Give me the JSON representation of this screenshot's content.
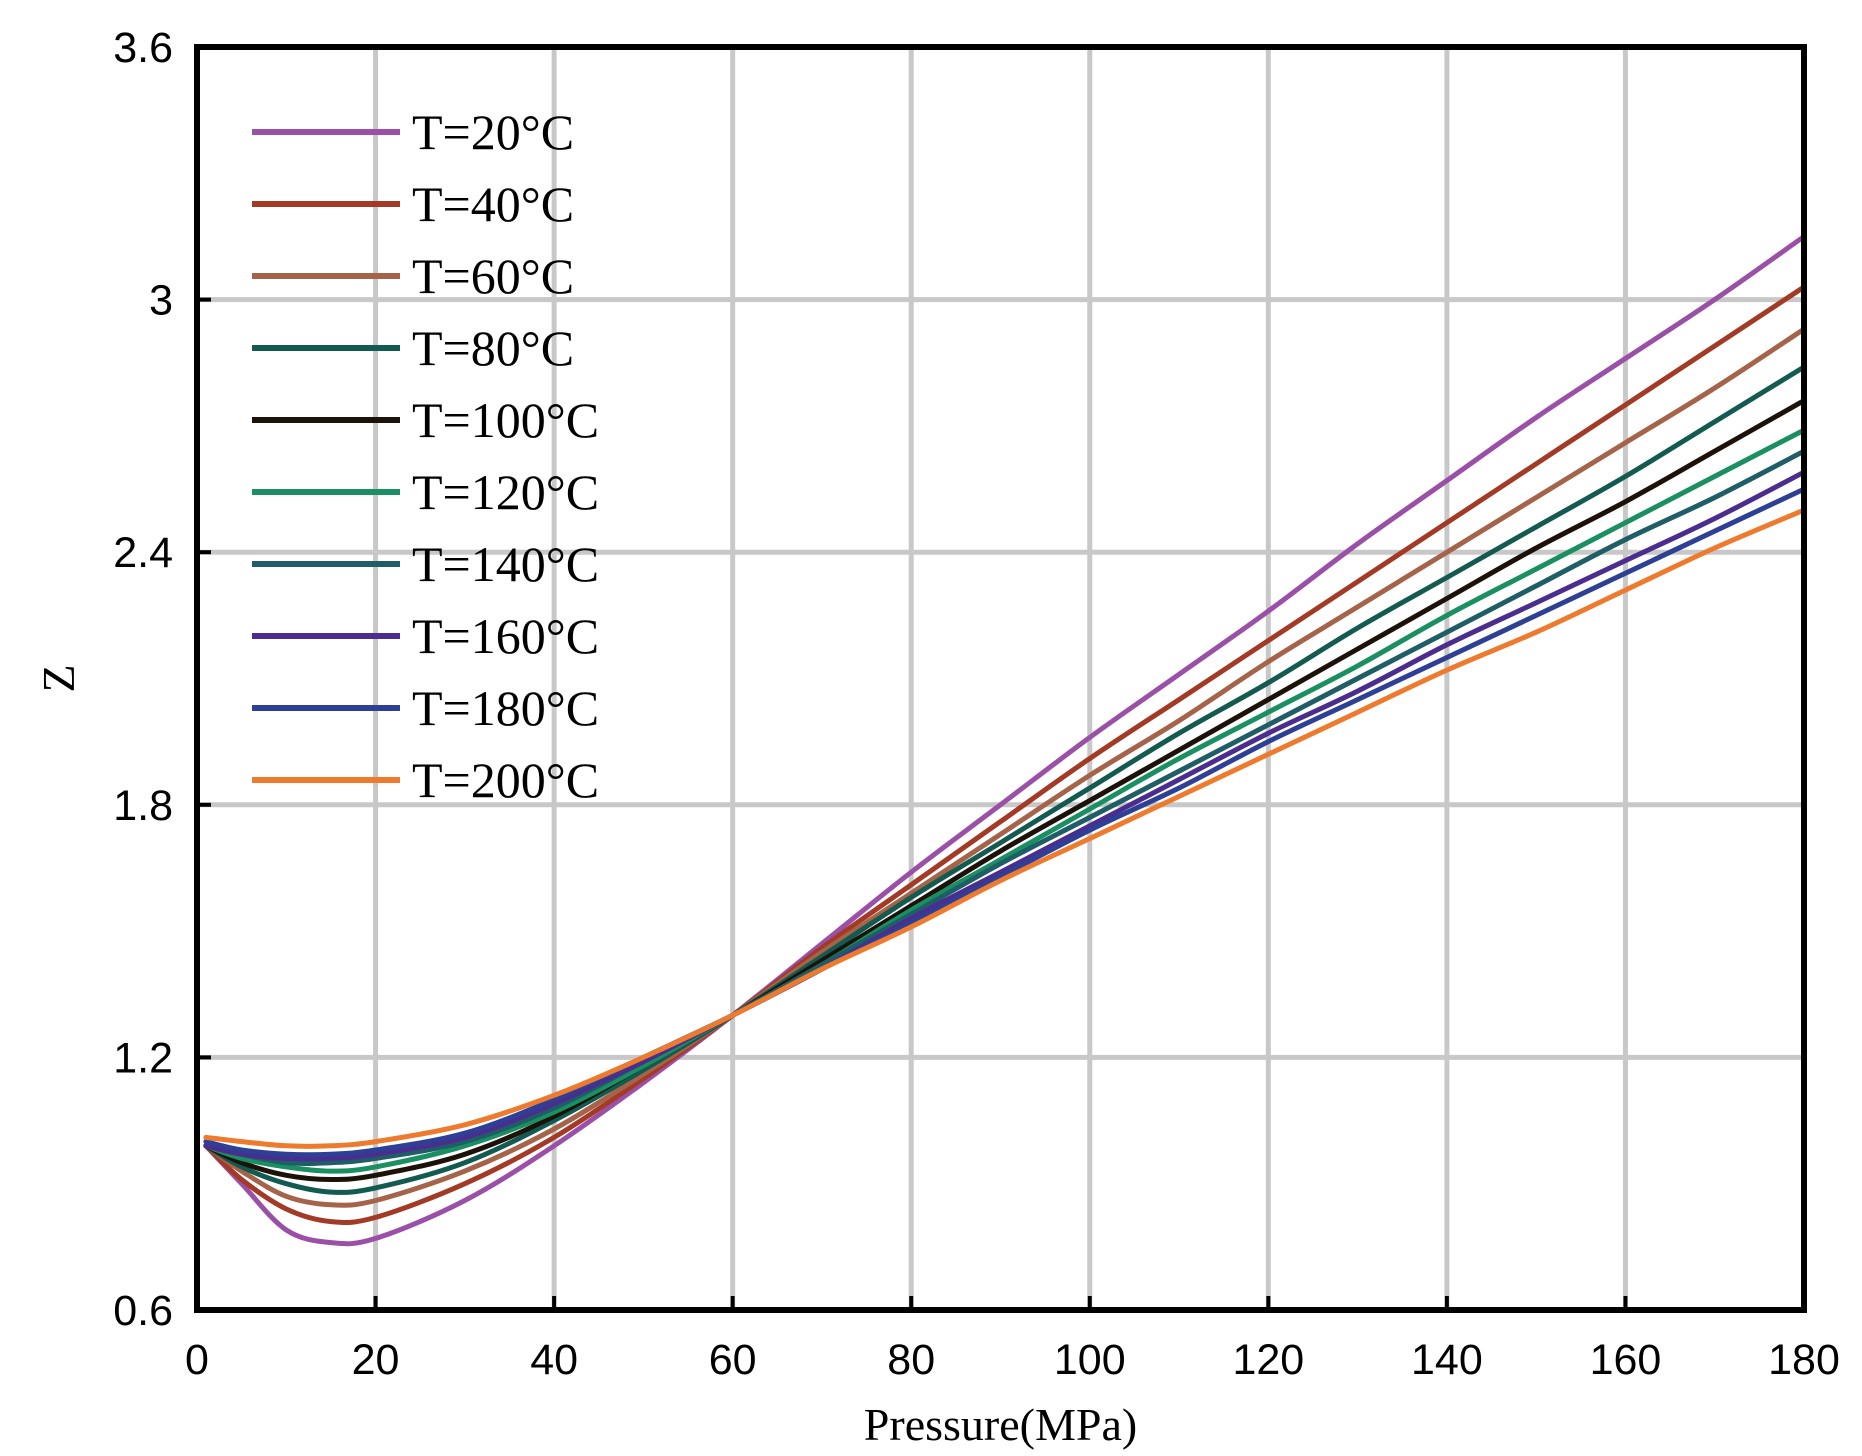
{
  "chart_data": {
    "type": "line",
    "title": "",
    "xlabel": "Pressure(MPa)",
    "ylabel": "Z",
    "xlim": [
      0,
      180
    ],
    "ylim": [
      0.6,
      3.6
    ],
    "xticks": [
      0,
      20,
      40,
      60,
      80,
      100,
      120,
      140,
      160,
      180
    ],
    "xtick_labels": [
      "0",
      "20",
      "40",
      "60",
      "80",
      "100",
      "120",
      "140",
      "160",
      "180"
    ],
    "yticks": [
      0.6,
      1.2,
      1.8,
      2.4,
      3.0,
      3.6
    ],
    "ytick_labels": [
      "0.6",
      "1.2",
      "1.8",
      "2.4",
      "3",
      "3.6"
    ],
    "grid": true,
    "legend_position": "top-left",
    "x": [
      1,
      5,
      10,
      15,
      20,
      30,
      40,
      50,
      60,
      70,
      80,
      90,
      100,
      110,
      120,
      130,
      140,
      150,
      160,
      170,
      180
    ],
    "series": [
      {
        "name": "T=20°C",
        "color": "#9b50a8",
        "values": [
          0.99,
          0.9,
          0.79,
          0.76,
          0.77,
          0.86,
          0.99,
          1.14,
          1.3,
          1.47,
          1.64,
          1.8,
          1.96,
          2.11,
          2.26,
          2.42,
          2.57,
          2.72,
          2.86,
          3.0,
          3.15
        ]
      },
      {
        "name": "T=40°C",
        "color": "#a33a26",
        "values": [
          0.99,
          0.91,
          0.84,
          0.81,
          0.82,
          0.9,
          1.01,
          1.15,
          1.3,
          1.46,
          1.61,
          1.76,
          1.91,
          2.05,
          2.19,
          2.33,
          2.47,
          2.61,
          2.75,
          2.89,
          3.03
        ]
      },
      {
        "name": "T=60°C",
        "color": "#a5644a",
        "values": [
          0.99,
          0.93,
          0.87,
          0.85,
          0.86,
          0.93,
          1.03,
          1.16,
          1.3,
          1.45,
          1.59,
          1.73,
          1.87,
          2.0,
          2.14,
          2.27,
          2.4,
          2.53,
          2.66,
          2.79,
          2.93
        ]
      },
      {
        "name": "T=80°C",
        "color": "#135a50",
        "values": [
          0.99,
          0.94,
          0.9,
          0.88,
          0.89,
          0.95,
          1.05,
          1.17,
          1.3,
          1.44,
          1.58,
          1.71,
          1.84,
          1.97,
          2.09,
          2.22,
          2.34,
          2.46,
          2.58,
          2.71,
          2.84
        ]
      },
      {
        "name": "T=100°C",
        "color": "#1c120a",
        "values": [
          0.99,
          0.95,
          0.92,
          0.91,
          0.92,
          0.97,
          1.06,
          1.18,
          1.3,
          1.43,
          1.56,
          1.69,
          1.81,
          1.93,
          2.05,
          2.17,
          2.29,
          2.41,
          2.52,
          2.64,
          2.76
        ]
      },
      {
        "name": "T=120°C",
        "color": "#1a8f62",
        "values": [
          0.99,
          0.96,
          0.94,
          0.93,
          0.94,
          0.99,
          1.07,
          1.18,
          1.3,
          1.42,
          1.55,
          1.67,
          1.79,
          1.91,
          2.02,
          2.13,
          2.25,
          2.36,
          2.47,
          2.58,
          2.69
        ]
      },
      {
        "name": "T=140°C",
        "color": "#1f5e66",
        "values": [
          0.99,
          0.97,
          0.95,
          0.95,
          0.96,
          1.0,
          1.08,
          1.19,
          1.3,
          1.42,
          1.54,
          1.66,
          1.77,
          1.88,
          1.99,
          2.1,
          2.21,
          2.32,
          2.43,
          2.53,
          2.64
        ]
      },
      {
        "name": "T=160°C",
        "color": "#4a2d8e",
        "values": [
          0.99,
          0.97,
          0.96,
          0.96,
          0.97,
          1.01,
          1.09,
          1.19,
          1.3,
          1.41,
          1.53,
          1.64,
          1.75,
          1.86,
          1.97,
          2.07,
          2.18,
          2.28,
          2.38,
          2.48,
          2.59
        ]
      },
      {
        "name": "T=180°C",
        "color": "#2e3f96",
        "values": [
          1.0,
          0.98,
          0.97,
          0.97,
          0.98,
          1.02,
          1.1,
          1.2,
          1.3,
          1.41,
          1.52,
          1.63,
          1.74,
          1.84,
          1.95,
          2.05,
          2.15,
          2.25,
          2.35,
          2.45,
          2.55
        ]
      },
      {
        "name": "T=200°C",
        "color": "#ee7a2e",
        "values": [
          1.01,
          1.0,
          0.99,
          0.99,
          1.0,
          1.04,
          1.11,
          1.2,
          1.3,
          1.41,
          1.51,
          1.62,
          1.72,
          1.82,
          1.92,
          2.02,
          2.12,
          2.21,
          2.31,
          2.41,
          2.5
        ]
      }
    ]
  }
}
